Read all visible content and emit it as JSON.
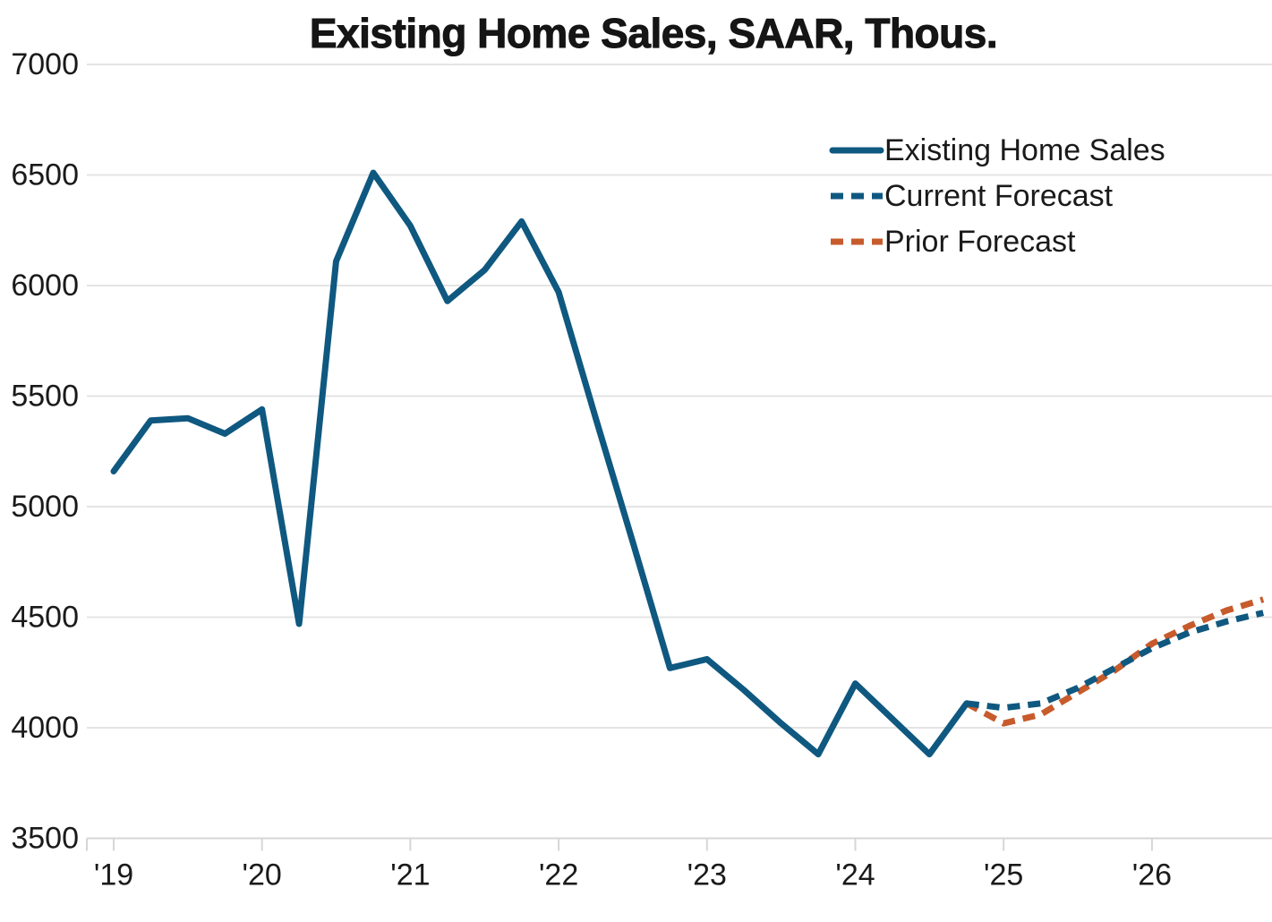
{
  "chart_data": {
    "type": "line",
    "title": "Existing Home Sales, SAAR, Thous.",
    "grid": "horizontal",
    "legend_position": "upper-right",
    "x_axis": {
      "tick_labels": [
        "'19",
        "'20",
        "'21",
        "'22",
        "'23",
        "'24",
        "'25",
        "'26"
      ],
      "points_per_year": 4,
      "cadence": "quarterly"
    },
    "y_axis": {
      "ticks": [
        7000,
        6500,
        6000,
        5500,
        5000,
        4500,
        4000,
        3500
      ],
      "range": [
        3500,
        7000
      ]
    },
    "series": [
      {
        "name": "Existing Home Sales",
        "line_style": "solid",
        "color": "#0f5880",
        "start_quarter_index": 0,
        "values": [
          5160,
          5390,
          5400,
          5330,
          5440,
          4470,
          6110,
          6510,
          6270,
          5930,
          6070,
          6290,
          5970,
          5400,
          4840,
          4270,
          4310,
          4170,
          4020,
          3880,
          4200,
          4040,
          3880,
          4110
        ]
      },
      {
        "name": "Current Forecast",
        "line_style": "dashed",
        "color": "#0f5880",
        "start_quarter_index": 23,
        "values": [
          4110,
          4090,
          4110,
          4180,
          4270,
          4360,
          4430,
          4480,
          4520
        ]
      },
      {
        "name": "Prior Forecast",
        "line_style": "dashed",
        "color": "#c75b2c",
        "start_quarter_index": 23,
        "values": [
          4110,
          4020,
          4060,
          4160,
          4260,
          4380,
          4460,
          4530,
          4580
        ]
      }
    ],
    "colors": {
      "actual_and_current": "#0f5880",
      "prior": "#c75b2c",
      "gridline": "#e4e4e4",
      "text": "#1a1a1a"
    }
  }
}
